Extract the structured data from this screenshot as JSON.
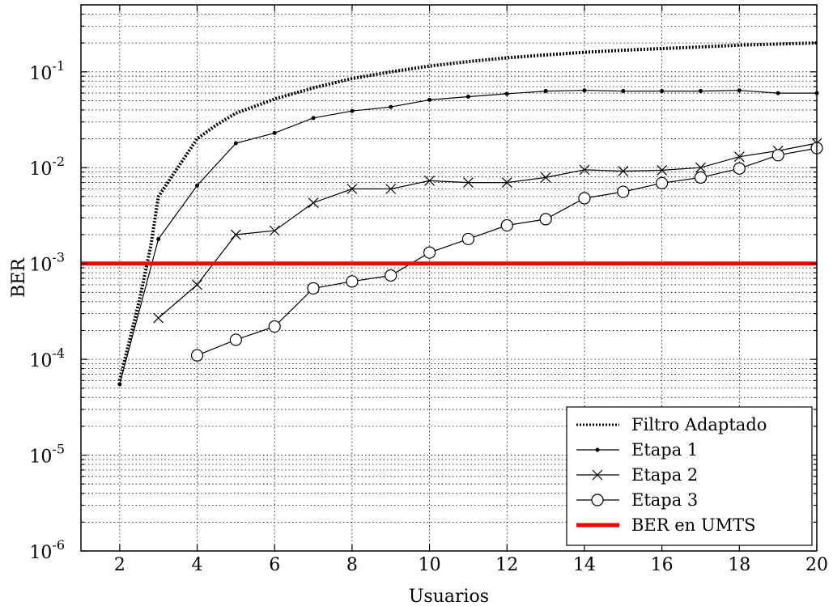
{
  "chart_data": {
    "type": "line",
    "xlabel": "Usuarios",
    "ylabel": "BER",
    "xlim": [
      1,
      20
    ],
    "ylim": [
      1e-06,
      0.5
    ],
    "yscale": "log",
    "grid": true,
    "xticks": [
      2,
      4,
      6,
      8,
      10,
      12,
      14,
      16,
      18,
      20
    ],
    "yticks": [
      {
        "value": 1e-06,
        "base": "10",
        "exp": "-6"
      },
      {
        "value": 1e-05,
        "base": "10",
        "exp": "-5"
      },
      {
        "value": 0.0001,
        "base": "10",
        "exp": "-4"
      },
      {
        "value": 0.001,
        "base": "10",
        "exp": "-3"
      },
      {
        "value": 0.01,
        "base": "10",
        "exp": "-2"
      },
      {
        "value": 0.1,
        "base": "10",
        "exp": "-1"
      }
    ],
    "legend_position": "bottom-right",
    "series": [
      {
        "name": "Filtro Adaptado",
        "style": "dotted",
        "marker": "none",
        "color": "#000000",
        "x": [
          2,
          2.5,
          2.8,
          3,
          3.5,
          4,
          4.5,
          5,
          6,
          7,
          8,
          9,
          10,
          11,
          12,
          13,
          14,
          15,
          16,
          17,
          18,
          19,
          20
        ],
        "y": [
          6e-05,
          0.0004,
          0.0015,
          0.005,
          0.01,
          0.02,
          0.028,
          0.037,
          0.052,
          0.068,
          0.085,
          0.1,
          0.115,
          0.128,
          0.14,
          0.15,
          0.16,
          0.168,
          0.175,
          0.182,
          0.19,
          0.195,
          0.2
        ]
      },
      {
        "name": "Etapa 1",
        "style": "solid",
        "marker": "dot",
        "color": "#000000",
        "x": [
          2,
          3,
          4,
          5,
          6,
          7,
          8,
          9,
          10,
          11,
          12,
          13,
          14,
          15,
          16,
          17,
          18,
          19,
          20
        ],
        "y": [
          5.5e-05,
          0.0018,
          0.0065,
          0.018,
          0.023,
          0.033,
          0.039,
          0.043,
          0.051,
          0.055,
          0.059,
          0.063,
          0.064,
          0.063,
          0.063,
          0.063,
          0.064,
          0.06,
          0.06
        ]
      },
      {
        "name": "Etapa 2",
        "style": "solid",
        "marker": "x",
        "color": "#000000",
        "x": [
          3,
          4,
          5,
          6,
          7,
          8,
          9,
          10,
          11,
          12,
          13,
          14,
          15,
          16,
          17,
          18,
          19,
          20
        ],
        "y": [
          0.00027,
          0.0006,
          0.002,
          0.0022,
          0.0043,
          0.006,
          0.006,
          0.0073,
          0.007,
          0.007,
          0.0079,
          0.0095,
          0.0092,
          0.0094,
          0.01,
          0.013,
          0.015,
          0.018
        ]
      },
      {
        "name": "Etapa 3",
        "style": "solid",
        "marker": "circle",
        "color": "#000000",
        "x": [
          4,
          5,
          6,
          7,
          8,
          9,
          10,
          11,
          12,
          13,
          14,
          15,
          16,
          17,
          18,
          19,
          20
        ],
        "y": [
          0.00011,
          0.00016,
          0.00022,
          0.00055,
          0.00065,
          0.00075,
          0.0013,
          0.0018,
          0.0025,
          0.0029,
          0.0048,
          0.0056,
          0.0069,
          0.0079,
          0.0098,
          0.0135,
          0.016
        ]
      },
      {
        "name": "BER en UMTS",
        "style": "solid",
        "marker": "none",
        "color": "#ff0000",
        "x": [
          1,
          20
        ],
        "y": [
          0.001,
          0.001
        ]
      }
    ]
  }
}
